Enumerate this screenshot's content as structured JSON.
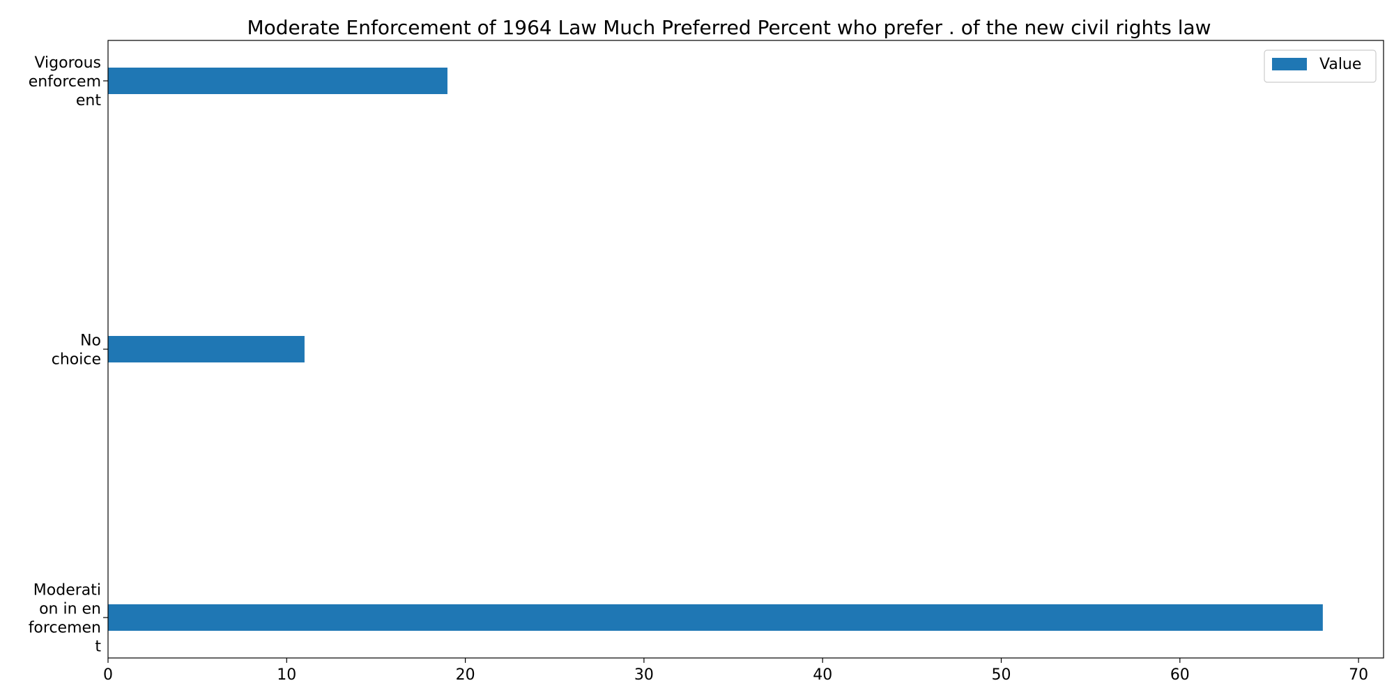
{
  "chart_data": {
    "type": "bar",
    "orientation": "horizontal",
    "title": "Moderate Enforcement of 1964 Law Much Preferred Percent who prefer . of the new civil rights law",
    "categories": [
      [
        "Vigorous",
        "enforcem",
        "ent"
      ],
      [
        "No",
        "choice"
      ],
      [
        "Moderati",
        "on in en",
        "forcemen",
        "t"
      ]
    ],
    "series": [
      {
        "name": "Value",
        "values": [
          19,
          11,
          68
        ],
        "color": "#1f77b4"
      }
    ],
    "xlim": [
      0,
      71.4
    ],
    "xticks": [
      0,
      10,
      20,
      30,
      40,
      50,
      60,
      70
    ],
    "xlabel": "",
    "ylabel": "",
    "grid": false,
    "legend_position": "top-right"
  }
}
